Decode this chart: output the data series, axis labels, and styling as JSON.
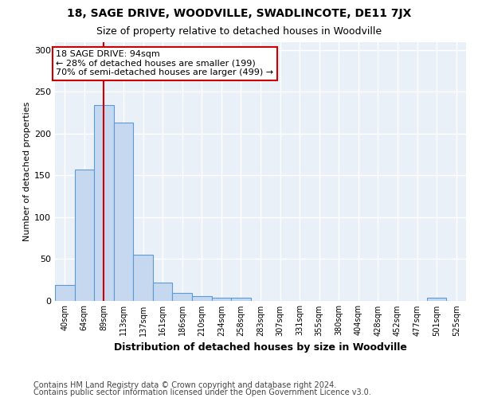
{
  "title1": "18, SAGE DRIVE, WOODVILLE, SWADLINCOTE, DE11 7JX",
  "title2": "Size of property relative to detached houses in Woodville",
  "xlabel": "Distribution of detached houses by size in Woodville",
  "ylabel": "Number of detached properties",
  "footer1": "Contains HM Land Registry data © Crown copyright and database right 2024.",
  "footer2": "Contains public sector information licensed under the Open Government Licence v3.0.",
  "bar_labels": [
    "40sqm",
    "64sqm",
    "89sqm",
    "113sqm",
    "137sqm",
    "161sqm",
    "186sqm",
    "210sqm",
    "234sqm",
    "258sqm",
    "283sqm",
    "307sqm",
    "331sqm",
    "355sqm",
    "380sqm",
    "404sqm",
    "428sqm",
    "452sqm",
    "477sqm",
    "501sqm",
    "525sqm"
  ],
  "bar_values": [
    19,
    157,
    234,
    213,
    55,
    21,
    9,
    5,
    3,
    3,
    0,
    0,
    0,
    0,
    0,
    0,
    0,
    0,
    0,
    3,
    0
  ],
  "bar_color": "#c5d8f0",
  "bar_edge_color": "#5b9bd5",
  "property_line_index": 2,
  "property_line_color": "#cc0000",
  "annotation_line1": "18 SAGE DRIVE: 94sqm",
  "annotation_line2": "← 28% of detached houses are smaller (199)",
  "annotation_line3": "70% of semi-detached houses are larger (499) →",
  "annotation_box_color": "#cc0000",
  "annotation_text_color": "#000000",
  "ylim": [
    0,
    310
  ],
  "yticks": [
    0,
    50,
    100,
    150,
    200,
    250,
    300
  ],
  "bg_color": "#eaf0f8",
  "grid_color": "#ffffff",
  "title1_fontsize": 10,
  "title2_fontsize": 9,
  "xlabel_fontsize": 9,
  "ylabel_fontsize": 8,
  "footer_fontsize": 7
}
